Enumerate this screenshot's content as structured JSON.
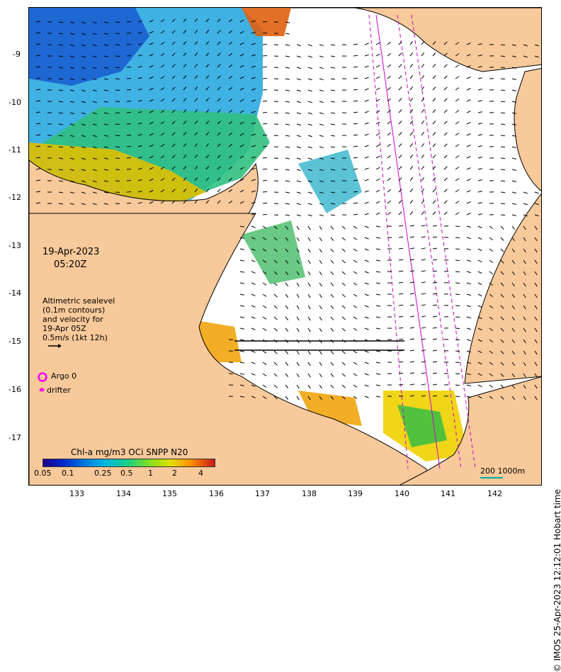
{
  "map": {
    "date": "19-Apr-2023",
    "time": "05:20Z",
    "legend_text": [
      "Altimetric sealevel",
      "(0.1m contours)",
      "and velocity for",
      "19-Apr 05Z",
      "0.5m/s (1kt 12h)"
    ],
    "argo_label": "Argo 0",
    "drifter_label": "drifter",
    "colorbar_title": "Chl-a mg/m3 OCi SNPP N20",
    "colorbar_ticks": [
      "0.05",
      "0.1",
      "0.25",
      "0.5",
      "1",
      "2",
      "4"
    ],
    "scale_label": "200  1000m",
    "credit": "© IMOS 25-Apr-2023 12:12:01 Hobart time",
    "x_ticks": [
      "133",
      "134",
      "135",
      "136",
      "137",
      "138",
      "139",
      "140",
      "141",
      "142"
    ],
    "y_ticks": [
      "-9",
      "-10",
      "-11",
      "-12",
      "-13",
      "-14",
      "-15",
      "-16",
      "-17"
    ],
    "colors": {
      "land": "#f8c99a",
      "ocean": "#ffffff",
      "argo": "#ff00ff",
      "track": "#cc00cc"
    }
  }
}
